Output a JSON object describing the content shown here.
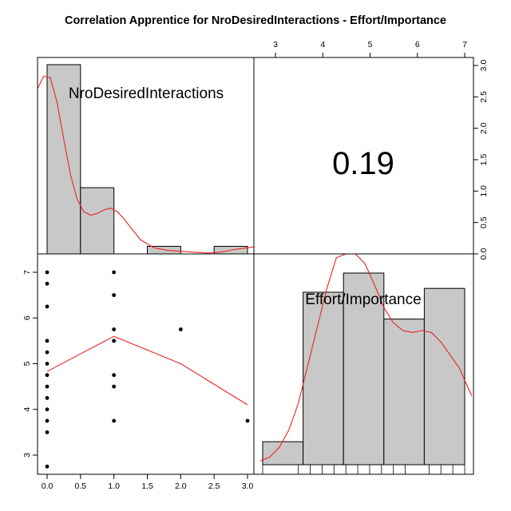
{
  "title": "Correlation Apprentice for NroDesiredInteractions - Effort/Importance",
  "colors": {
    "bar_fill": "#c8c8c8",
    "density_line": "#ee2222",
    "loess_line": "#ee2222",
    "point": "#000000"
  },
  "chart_data": {
    "type": "pairs-panel",
    "variables": [
      "NroDesiredInteractions",
      "Effort/Importance"
    ],
    "correlation": "0.19",
    "axes": {
      "nro": {
        "range": [
          0,
          3
        ],
        "ticks": [
          "0.0",
          "0.5",
          "1.0",
          "1.5",
          "2.0",
          "2.5",
          "3.0"
        ]
      },
      "effort": {
        "range": [
          2.75,
          7
        ],
        "ticks": [
          "3",
          "4",
          "5",
          "6",
          "7"
        ]
      }
    },
    "histogram_nro": {
      "type": "bar",
      "bins": [
        [
          0,
          0.5
        ],
        [
          0.5,
          1.0
        ],
        [
          1.0,
          1.5
        ],
        [
          1.5,
          2.0
        ],
        [
          2.0,
          2.5
        ],
        [
          2.5,
          3.0
        ]
      ],
      "heights": [
        1.0,
        0.35,
        0.0,
        0.04,
        0.0,
        0.04
      ]
    },
    "histogram_effort": {
      "type": "bar",
      "bins": [
        [
          2.75,
          3.6
        ],
        [
          3.6,
          4.45
        ],
        [
          4.45,
          5.3
        ],
        [
          5.3,
          6.15
        ],
        [
          6.15,
          7.0
        ]
      ],
      "heights": [
        0.12,
        0.9,
        1.0,
        0.76,
        0.92
      ]
    },
    "density_nro": {
      "type": "line",
      "x": [
        -0.15,
        -0.05,
        0.05,
        0.15,
        0.25,
        0.35,
        0.45,
        0.55,
        0.65,
        0.75,
        0.85,
        0.95,
        1.05,
        1.15,
        1.25,
        1.4,
        1.6,
        1.8,
        2.0,
        2.2,
        2.4,
        2.6,
        2.8,
        3.0,
        3.1
      ],
      "y": [
        0.94,
        1.01,
        1.0,
        0.86,
        0.65,
        0.45,
        0.31,
        0.24,
        0.22,
        0.23,
        0.25,
        0.26,
        0.24,
        0.2,
        0.15,
        0.08,
        0.035,
        0.02,
        0.015,
        0.01,
        0.005,
        0.01,
        0.025,
        0.035,
        0.04
      ]
    },
    "density_effort": {
      "type": "line",
      "x": [
        2.7,
        2.9,
        3.1,
        3.3,
        3.5,
        3.7,
        3.9,
        4.1,
        4.3,
        4.5,
        4.7,
        4.9,
        5.1,
        5.3,
        5.5,
        5.7,
        5.9,
        6.1,
        6.3,
        6.5,
        6.7,
        6.9,
        7.0,
        7.15
      ],
      "y": [
        0.02,
        0.04,
        0.09,
        0.18,
        0.32,
        0.52,
        0.72,
        0.92,
        1.08,
        1.15,
        1.13,
        1.05,
        0.94,
        0.82,
        0.74,
        0.7,
        0.69,
        0.7,
        0.69,
        0.64,
        0.57,
        0.5,
        0.44,
        0.36
      ]
    },
    "rug_effort": [
      2.75,
      3.5,
      3.75,
      4.0,
      4.25,
      4.5,
      4.75,
      5.0,
      5.25,
      5.5,
      5.75,
      6.25,
      6.5,
      6.75,
      7.0
    ],
    "scatter": {
      "type": "scatter",
      "points": [
        [
          0,
          2.75
        ],
        [
          0,
          3.5
        ],
        [
          0,
          3.75
        ],
        [
          0,
          4.0
        ],
        [
          0,
          4.25
        ],
        [
          0,
          4.5
        ],
        [
          0,
          4.75
        ],
        [
          0,
          5.0
        ],
        [
          0,
          5.25
        ],
        [
          0,
          5.5
        ],
        [
          0,
          6.25
        ],
        [
          0,
          6.75
        ],
        [
          0,
          7.0
        ],
        [
          1,
          3.75
        ],
        [
          1,
          4.5
        ],
        [
          1,
          4.75
        ],
        [
          1,
          5.5
        ],
        [
          1,
          5.75
        ],
        [
          1,
          6.5
        ],
        [
          1,
          7.0
        ],
        [
          2,
          5.75
        ],
        [
          3,
          3.75
        ]
      ]
    },
    "loess": {
      "type": "line",
      "x": [
        0,
        1,
        2,
        3
      ],
      "y": [
        4.83,
        5.6,
        5.0,
        4.1
      ]
    }
  }
}
